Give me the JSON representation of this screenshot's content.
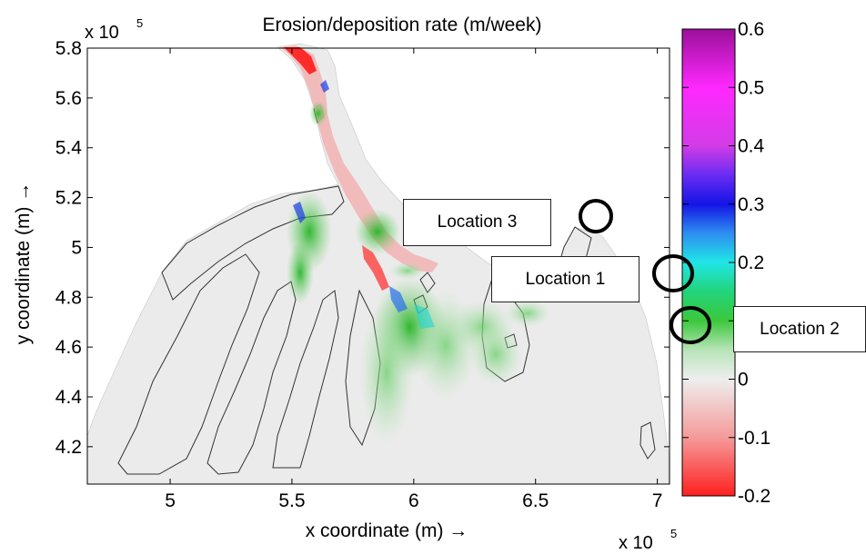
{
  "chart_data": {
    "type": "heatmap",
    "title": "Erosion/deposition rate (m/week)",
    "xlabel": "x coordinate (m) →",
    "ylabel": "y coordinate (m) →",
    "x_multiplier": "x 10",
    "y_multiplier": "x 10",
    "multiplier_exponent": "5",
    "x_ticks": [
      "5",
      "5.5",
      "6",
      "6.5",
      "7"
    ],
    "x_tick_values": [
      5,
      5.5,
      6,
      6.5,
      7
    ],
    "y_ticks": [
      "4.2",
      "4.4",
      "4.6",
      "4.8",
      "5",
      "5.2",
      "5.4",
      "5.6",
      "5.8"
    ],
    "y_tick_values": [
      4.2,
      4.4,
      4.6,
      4.8,
      5.0,
      5.2,
      5.4,
      5.6,
      5.8
    ],
    "xlim": [
      4.66,
      7.05
    ],
    "ylim": [
      4.05,
      5.8
    ],
    "colorbar": {
      "ticks": [
        "0.6",
        "0.5",
        "0.4",
        "0.3",
        "0.2",
        "0.1",
        "0",
        "-0.1",
        "-0.2"
      ],
      "tick_values": [
        0.6,
        0.5,
        0.4,
        0.3,
        0.2,
        0.1,
        0,
        -0.1,
        -0.2
      ],
      "range": [
        -0.2,
        0.6
      ],
      "colormap": [
        {
          "value": -0.2,
          "color": "#ff2020"
        },
        {
          "value": -0.1,
          "color": "#f59a9a"
        },
        {
          "value": 0.0,
          "color": "#eeeeee"
        },
        {
          "value": 0.05,
          "color": "#b8e4b8"
        },
        {
          "value": 0.1,
          "color": "#3cc83c"
        },
        {
          "value": 0.15,
          "color": "#22d47a"
        },
        {
          "value": 0.2,
          "color": "#20e6e6"
        },
        {
          "value": 0.25,
          "color": "#2e8ef0"
        },
        {
          "value": 0.3,
          "color": "#1414e6"
        },
        {
          "value": 0.35,
          "color": "#6a2cf2"
        },
        {
          "value": 0.4,
          "color": "#d23ce6"
        },
        {
          "value": 0.5,
          "color": "#ff28ff"
        },
        {
          "value": 0.6,
          "color": "#9a109a"
        }
      ]
    },
    "annotations": [
      {
        "label": "Location 1",
        "x": 6.78,
        "y": 4.89
      },
      {
        "label": "Location 2",
        "x": 6.72,
        "y": 4.63
      },
      {
        "label": "Location 3",
        "x": 6.62,
        "y": 5.11
      }
    ]
  }
}
